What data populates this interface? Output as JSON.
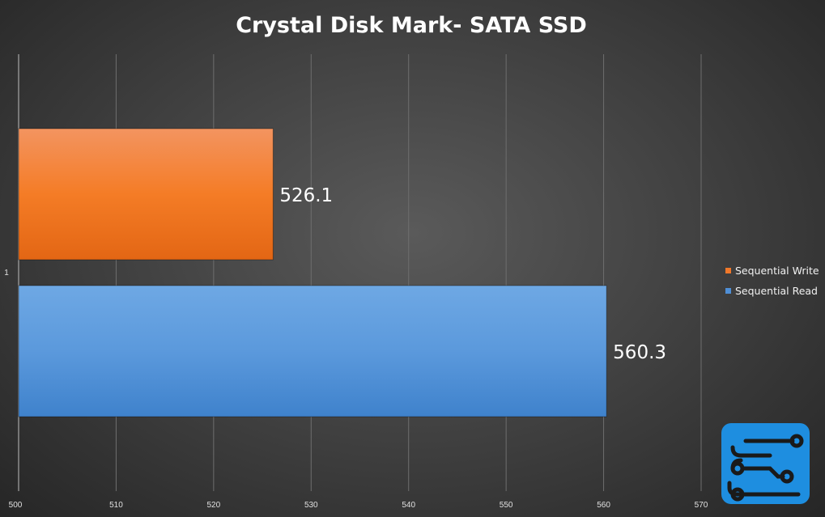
{
  "chart_data": {
    "type": "bar",
    "orientation": "horizontal",
    "title": "Crystal Disk Mark- SATA SSD",
    "categories": [
      "1"
    ],
    "series": [
      {
        "name": "Sequential Write",
        "values": [
          526.1
        ],
        "color": "#f0782a"
      },
      {
        "name": "Sequential Read",
        "values": [
          560.3
        ],
        "color": "#4f8fd6"
      }
    ],
    "xlim": [
      500,
      570
    ],
    "xticks": [
      500,
      510,
      520,
      530,
      540,
      550,
      560,
      570
    ],
    "grid": true,
    "legend": "right",
    "data_labels": true
  },
  "logo": {
    "icon": "circuit-board-logo-icon",
    "color": "#1e8ee0"
  }
}
